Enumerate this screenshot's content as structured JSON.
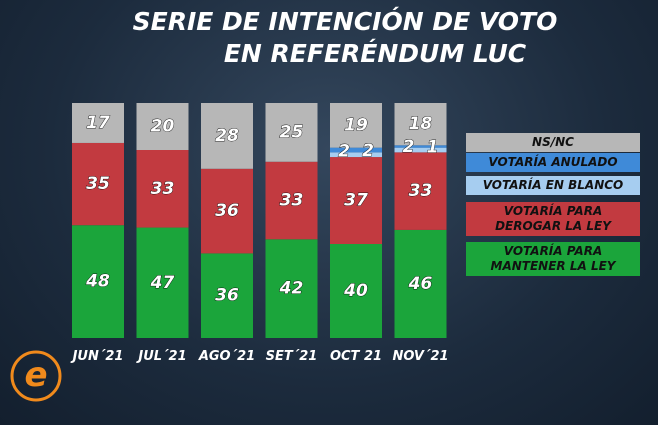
{
  "chart_data": {
    "type": "stacked_bar",
    "title": [
      "SERIE DE INTENCIÓN DE VOTO",
      "EN REFERÉNDUM LUC"
    ],
    "categories": [
      "JUN´21",
      "JUL´21",
      "AGO´21",
      "SET´21",
      "OCT 21",
      "NOV´21"
    ],
    "ylim": [
      0,
      100
    ],
    "series": [
      {
        "name": "VOTARÍA PARA MANTENER LA LEY",
        "color": "#1ba53b",
        "values": [
          48,
          47,
          36,
          42,
          40,
          46
        ]
      },
      {
        "name": "VOTARÍA PARA DEROGAR LA LEY",
        "color": "#c23a40",
        "values": [
          35,
          33,
          36,
          33,
          37,
          33
        ]
      },
      {
        "name": "VOTARÍA EN BLANCO",
        "color": "#a6cdf0",
        "values": [
          null,
          null,
          null,
          null,
          2,
          2
        ]
      },
      {
        "name": "VOTARÍA ANULADO",
        "color": "#3f8ad8",
        "values": [
          null,
          null,
          null,
          null,
          2,
          1
        ]
      },
      {
        "name": "NS/NC",
        "color": "#b7b7b7",
        "values": [
          17,
          20,
          28,
          25,
          19,
          18
        ]
      }
    ]
  }
}
